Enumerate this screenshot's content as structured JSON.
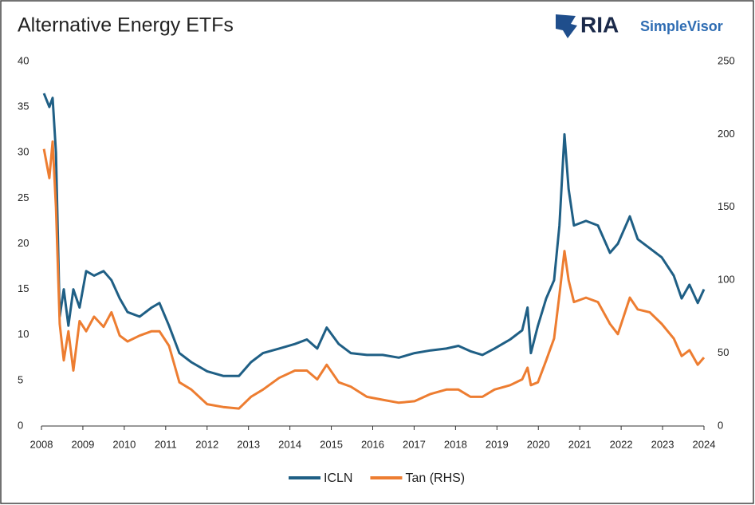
{
  "logo": {
    "brand": "RIA",
    "product": "SimpleVisor"
  },
  "chart_data": {
    "type": "line",
    "title": "Alternative Energy ETFs",
    "x": [
      2008.06,
      2008.19,
      2008.27,
      2008.35,
      2008.44,
      2008.54,
      2008.65,
      2008.77,
      2008.92,
      2009.08,
      2009.27,
      2009.5,
      2009.69,
      2009.89,
      2010.08,
      2010.37,
      2010.66,
      2010.85,
      2011.08,
      2011.33,
      2011.62,
      2012.0,
      2012.39,
      2012.77,
      2013.06,
      2013.35,
      2013.74,
      2014.12,
      2014.41,
      2014.66,
      2014.89,
      2015.18,
      2015.47,
      2015.86,
      2016.24,
      2016.63,
      2017.01,
      2017.4,
      2017.78,
      2018.07,
      2018.36,
      2018.65,
      2018.94,
      2019.32,
      2019.61,
      2019.74,
      2019.82,
      2019.99,
      2020.19,
      2020.38,
      2020.51,
      2020.63,
      2020.73,
      2020.86,
      2021.15,
      2021.44,
      2021.73,
      2021.92,
      2022.21,
      2022.4,
      2022.69,
      2022.98,
      2023.27,
      2023.46,
      2023.65,
      2023.85,
      2024.0
    ],
    "series": [
      {
        "name": "ICLN",
        "color": "#1f5f85",
        "axis": "y",
        "values": [
          36.5,
          35,
          36,
          30,
          12,
          15,
          11,
          15,
          13,
          17,
          16.5,
          17,
          16,
          14,
          12.5,
          12,
          13,
          13.5,
          11,
          8,
          7,
          6,
          5.5,
          5.5,
          7,
          8,
          8.5,
          9,
          9.5,
          8.5,
          10.8,
          9,
          8,
          7.8,
          7.8,
          7.5,
          8,
          8.3,
          8.5,
          8.8,
          8.2,
          7.8,
          8.5,
          9.5,
          10.5,
          13,
          8,
          11,
          14,
          16,
          22,
          32,
          26,
          22,
          22.5,
          22,
          19,
          20,
          23,
          20.5,
          19.5,
          18.5,
          16.5,
          14,
          15.5,
          13.5,
          15
        ]
      },
      {
        "name": "Tan (RHS)",
        "color": "#ed7d31",
        "axis": "y2",
        "values": [
          190,
          170,
          195,
          150,
          70,
          45,
          65,
          38,
          72,
          65,
          75,
          68,
          78,
          62,
          58,
          62,
          65,
          65,
          55,
          30,
          25,
          15,
          13,
          12,
          20,
          25,
          33,
          38,
          38,
          32,
          42,
          30,
          27,
          20,
          18,
          16,
          17,
          22,
          25,
          25,
          20,
          20,
          25,
          28,
          32,
          40,
          28,
          30,
          45,
          60,
          90,
          120,
          100,
          85,
          88,
          85,
          70,
          63,
          88,
          80,
          78,
          70,
          60,
          48,
          52,
          42,
          47
        ]
      }
    ],
    "xlim": [
      2008,
      2024
    ],
    "xticks": [
      2008,
      2009,
      2010,
      2011,
      2012,
      2013,
      2014,
      2015,
      2016,
      2017,
      2018,
      2019,
      2020,
      2021,
      2022,
      2023,
      2024
    ],
    "ylim": [
      0,
      40
    ],
    "yticks": [
      0,
      5,
      10,
      15,
      20,
      25,
      30,
      35,
      40
    ],
    "y2lim": [
      0,
      250
    ],
    "y2ticks": [
      0,
      50,
      100,
      150,
      200,
      250
    ],
    "grid": false,
    "legend": "bottom"
  }
}
